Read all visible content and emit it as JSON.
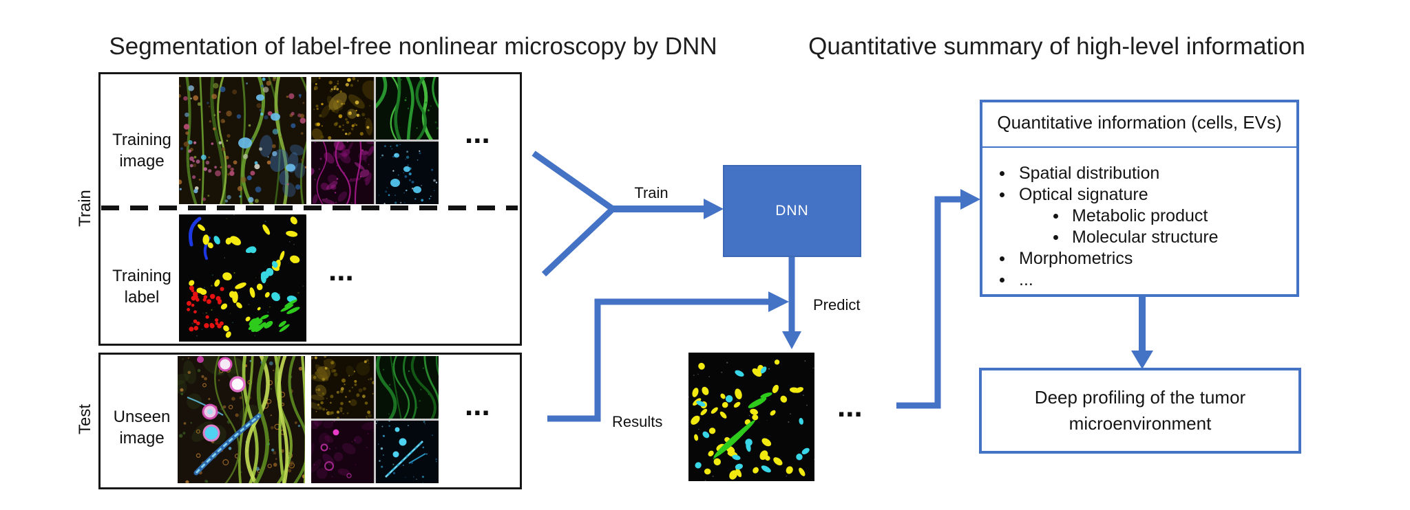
{
  "titles": {
    "left": "Segmentation of label-free nonlinear microscopy by DNN",
    "right": "Quantitative summary of high-level information"
  },
  "train_section": {
    "side_label": "Train",
    "row1_label": "Training image",
    "row2_label": "Training label",
    "row1_ellipsis": "...",
    "row2_ellipsis": "..."
  },
  "test_section": {
    "side_label": "Test",
    "row_label": "Unseen image",
    "row_ellipsis": "..."
  },
  "flow": {
    "train_arrow_label": "Train",
    "dnn_label": "DNN",
    "predict_label": "Predict",
    "results_label": "Results",
    "results_ellipsis": "..."
  },
  "summary": {
    "header": "Quantitative information (cells, EVs)",
    "bullets": [
      {
        "level": 1,
        "text": "Spatial distribution"
      },
      {
        "level": 1,
        "text": "Optical signature"
      },
      {
        "level": 2,
        "text": "Metabolic product"
      },
      {
        "level": 2,
        "text": "Molecular structure"
      },
      {
        "level": 1,
        "text": "Morphometrics"
      },
      {
        "level": 1,
        "text": "..."
      }
    ],
    "conclusion_line1": "Deep profiling of the tumor",
    "conclusion_line2": "microenvironment"
  },
  "colors": {
    "accent_blue": "#4472C4",
    "box_border_black": "#161616"
  }
}
